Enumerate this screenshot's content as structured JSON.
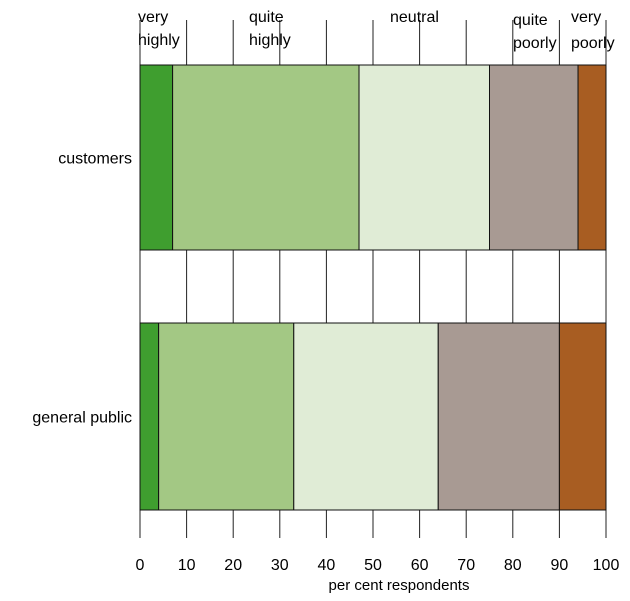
{
  "chart_data": {
    "type": "bar",
    "orientation": "horizontal",
    "stacked": true,
    "title": "",
    "xlabel": "per cent respondents",
    "ylabel": "",
    "xlim": [
      0,
      100
    ],
    "x_ticks": [
      0,
      10,
      20,
      30,
      40,
      50,
      60,
      70,
      80,
      90,
      100
    ],
    "grid": "vertical",
    "legend_placement": "top",
    "categories": [
      "customers",
      "general public"
    ],
    "series": [
      {
        "name": "very highly",
        "color": "#3f9e2f",
        "values": [
          7,
          4
        ]
      },
      {
        "name": "quite highly",
        "color": "#a3c884",
        "values": [
          40,
          29
        ]
      },
      {
        "name": "neutral",
        "color": "#e0ecd6",
        "values": [
          28,
          31
        ]
      },
      {
        "name": "quite poorly",
        "color": "#a89a93",
        "values": [
          19,
          26
        ]
      },
      {
        "name": "very poorly",
        "color": "#a85d22",
        "values": [
          6,
          10
        ]
      }
    ],
    "legend_labels": [
      {
        "lines": [
          "very",
          "highly"
        ],
        "series": "very highly"
      },
      {
        "lines": [
          "quite",
          "highly"
        ],
        "series": "quite highly"
      },
      {
        "lines": [
          "neutral"
        ],
        "series": "neutral"
      },
      {
        "lines": [
          "quite",
          "poorly"
        ],
        "series": "quite poorly"
      },
      {
        "lines": [
          "very",
          "poorly"
        ],
        "series": "very poorly"
      }
    ]
  }
}
